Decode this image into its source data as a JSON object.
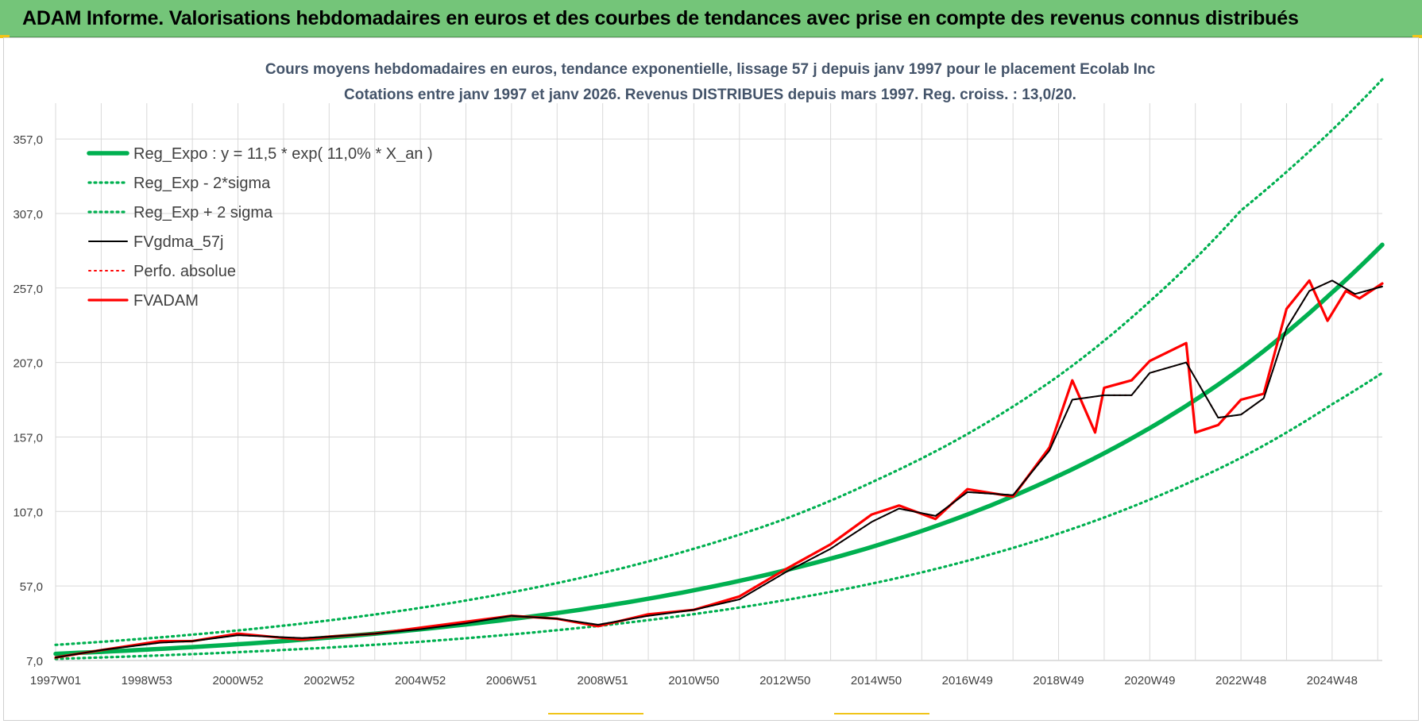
{
  "banner": {
    "title": "ADAM Informe. Valorisations hebdomadaires en euros et des courbes de tendances avec prise en compte des revenus connus distribués"
  },
  "colors": {
    "banner_bg": "#74c579",
    "reg_expo": "#00b050",
    "sigma_band": "#00b050",
    "fvgdma": "#000000",
    "perfo": "#ff0000",
    "fvadam": "#ff0000",
    "grid": "#d9d9d9"
  },
  "chart_data": {
    "type": "line",
    "title": "Cours moyens hebdomadaires en euros, tendance exponentielle, lissage 57 j depuis janv 1997 pour le placement Ecolab Inc",
    "subtitle": "Cotations entre janv 1997 et janv 2026. Revenus DISTRIBUES depuis mars 1997. Reg. croiss. : 13,0/20.",
    "ylim": [
      7,
      397
    ],
    "y_ticks": [
      "7,0",
      "57,0",
      "107,0",
      "157,0",
      "207,0",
      "257,0",
      "307,0",
      "357,0"
    ],
    "x_ticks": [
      "1997W01",
      "1998W53",
      "2000W52",
      "2002W52",
      "2004W52",
      "2006W51",
      "2008W51",
      "2010W50",
      "2012W50",
      "2014W50",
      "2016W49",
      "2018W49",
      "2020W49",
      "2022W48",
      "2024W48"
    ],
    "xlim": [
      1997.0,
      2026.1
    ],
    "grid": true,
    "legend_position": "top-left",
    "series": [
      {
        "name": "Reg_Expo : y = 11,5 * exp( 11,0% *  X_an )",
        "style": "solid-thick",
        "color": "#00b050",
        "x": [
          1997,
          1999,
          2001,
          2003,
          2005,
          2007,
          2009,
          2011,
          2013,
          2015,
          2017,
          2019,
          2021,
          2023,
          2025,
          2026.1
        ],
        "values": [
          11.5,
          14.3,
          17.9,
          22.4,
          27.9,
          34.8,
          43.4,
          54.1,
          67.5,
          84.1,
          105,
          131,
          163,
          203,
          254,
          286
        ]
      },
      {
        "name": "Reg_Exp - 2*sigma",
        "style": "dotted",
        "color": "#00b050",
        "x": [
          1997,
          1999,
          2001,
          2003,
          2005,
          2007,
          2009,
          2011,
          2013,
          2015,
          2017,
          2019,
          2021,
          2023,
          2025,
          2026.1
        ],
        "values": [
          8.1,
          10.1,
          12.6,
          15.7,
          19.6,
          24.5,
          30.5,
          38.1,
          47.5,
          59.2,
          73.9,
          92.2,
          115,
          143,
          179,
          200
        ]
      },
      {
        "name": "Reg_Exp + 2 sigma",
        "style": "dotted",
        "color": "#00b050",
        "x": [
          1997,
          1999,
          2001,
          2003,
          2005,
          2007,
          2009,
          2011,
          2013,
          2015,
          2017,
          2019,
          2021,
          2023,
          2025,
          2026.1
        ],
        "values": [
          17.5,
          21.8,
          27.2,
          33.9,
          42.3,
          52.8,
          65.8,
          82,
          102,
          128,
          159,
          198,
          248,
          309,
          363,
          397
        ]
      },
      {
        "name": "FVgdma_57j",
        "style": "solid",
        "color": "#000000",
        "x": [
          1997,
          1998,
          1999.3,
          2000,
          2001,
          2002.4,
          2003,
          2004,
          2005,
          2006,
          2007,
          2008,
          2008.9,
          2010,
          2011,
          2012,
          2013,
          2014,
          2014.9,
          2015.5,
          2016.3,
          2017,
          2018,
          2018.8,
          2019.3,
          2020,
          2020.6,
          2021,
          2021.8,
          2022.5,
          2023,
          2023.5,
          2024,
          2024.5,
          2025,
          2025.5,
          2026.1
        ],
        "values": [
          9,
          14,
          19,
          20,
          24,
          22,
          23,
          25,
          28,
          32,
          37,
          35,
          31,
          37,
          41,
          48,
          66,
          82,
          100,
          109,
          104,
          120,
          118,
          148,
          182,
          185,
          185,
          200,
          207,
          170,
          172,
          183,
          230,
          255,
          262,
          253,
          258
        ]
      },
      {
        "name": "Perfo. absolue",
        "style": "dotted",
        "color": "#ff0000",
        "x": [
          1997,
          1998,
          1999.3,
          2000,
          2001,
          2002.4,
          2003,
          2004,
          2005,
          2006,
          2007,
          2008,
          2008.9,
          2010,
          2011,
          2012,
          2013,
          2014,
          2014.9,
          2015.5,
          2016.3,
          2017,
          2018,
          2018.8,
          2019.3,
          2020,
          2020.6,
          2021,
          2021.8,
          2022.5,
          2023,
          2023.5,
          2024,
          2024.5,
          2025,
          2025.5,
          2026.1
        ],
        "values": [
          9,
          14,
          19,
          20,
          24,
          22,
          23,
          25,
          28,
          32,
          37,
          35,
          31,
          37,
          41,
          48,
          66,
          82,
          100,
          109,
          104,
          120,
          118,
          148,
          182,
          185,
          185,
          200,
          207,
          170,
          172,
          183,
          230,
          255,
          262,
          253,
          258
        ]
      },
      {
        "name": "FVADAM",
        "style": "solid-thick",
        "color": "#ff0000",
        "x": [
          1997,
          1998,
          1999.3,
          2000,
          2001,
          2002.4,
          2003,
          2004,
          2005,
          2006,
          2007,
          2008,
          2008.9,
          2010,
          2011,
          2012,
          2013,
          2014,
          2014.9,
          2015.5,
          2016.3,
          2017,
          2018,
          2018.8,
          2019.3,
          2019.8,
          2020,
          2020.6,
          2021,
          2021.8,
          2022,
          2022.5,
          2023,
          2023.5,
          2024,
          2024.5,
          2024.9,
          2025.3,
          2025.6,
          2026.1
        ],
        "values": [
          9,
          14,
          20,
          20,
          25,
          21,
          23,
          25,
          29,
          33,
          37,
          35,
          30,
          38,
          41,
          50,
          68,
          85,
          105,
          111,
          102,
          122,
          117,
          150,
          195,
          160,
          190,
          195,
          208,
          220,
          160,
          165,
          182,
          186,
          243,
          262,
          235,
          255,
          250,
          260
        ]
      }
    ]
  }
}
